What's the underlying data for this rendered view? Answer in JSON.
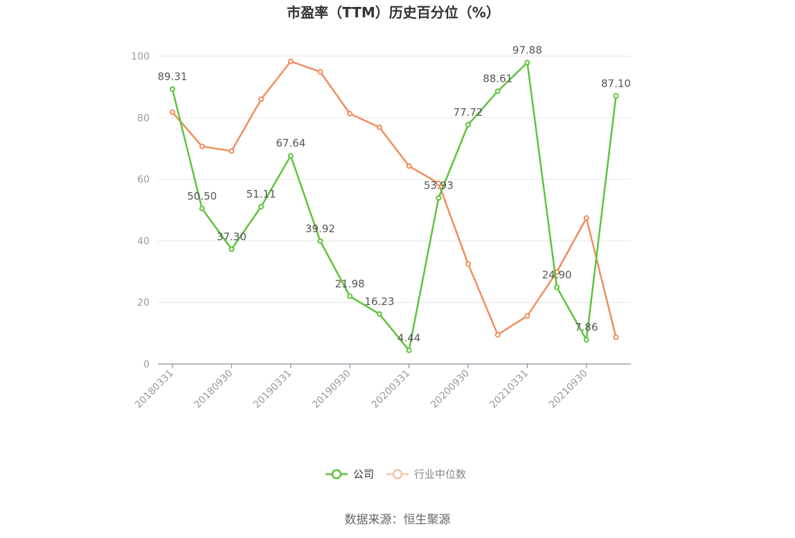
{
  "chart_data": {
    "type": "line",
    "title": "市盈率（TTM）历史百分位（%）",
    "ylim": [
      0,
      100
    ],
    "yticks": [
      0,
      20,
      40,
      60,
      80,
      100
    ],
    "x_ticks": [
      "20180331",
      "20180930",
      "20190331",
      "20190930",
      "20200331",
      "20200930",
      "20210331",
      "20210930"
    ],
    "x": [
      "20180331",
      "20180630",
      "20180930",
      "20181231",
      "20190331",
      "20190630",
      "20190930",
      "20191231",
      "20200331",
      "20200630",
      "20200930",
      "20201231",
      "20210331",
      "20210630",
      "20210930",
      "20211231"
    ],
    "series": [
      {
        "name": "公司",
        "color": "#5cc33a",
        "values": [
          89.31,
          50.5,
          37.3,
          51.11,
          67.64,
          39.92,
          21.98,
          16.23,
          4.44,
          53.93,
          77.72,
          88.61,
          97.88,
          24.9,
          7.86,
          87.1
        ],
        "labels": [
          "89.31",
          "50.50",
          "37.30",
          "51.11",
          "67.64",
          "39.92",
          "21.98",
          "16.23",
          "4.44",
          "53.93",
          "77.72",
          "88.61",
          "97.88",
          "24.90",
          "7.86",
          "87.10"
        ]
      },
      {
        "name": "行业中位数",
        "color": "#f08c5a",
        "values": [
          81.8,
          70.7,
          69.2,
          86.0,
          98.3,
          94.9,
          81.3,
          76.9,
          64.3,
          58.7,
          32.5,
          9.5,
          15.6,
          29.9,
          47.4,
          8.7
        ]
      }
    ],
    "grid": true,
    "legend_position": "bottom-center",
    "source": "数据来源：恒生聚源"
  }
}
